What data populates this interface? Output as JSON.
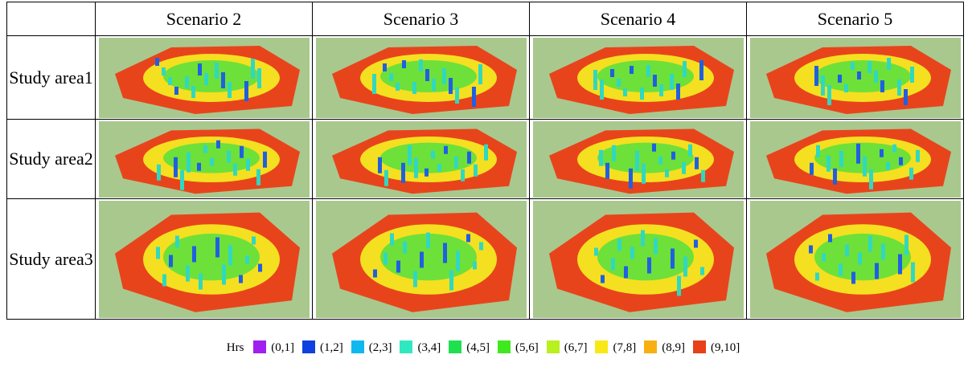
{
  "header": {
    "columns": [
      "Scenario 2",
      "Scenario 3",
      "Scenario 4",
      "Scenario 5"
    ]
  },
  "rows": [
    "Study area1",
    "Study area2",
    "Study area3"
  ],
  "legend": {
    "title": "Hrs",
    "items": [
      {
        "label": "(0,1]",
        "color": "#a020f0"
      },
      {
        "label": "(1,2]",
        "color": "#1040e0"
      },
      {
        "label": "(2,3]",
        "color": "#10b8f0"
      },
      {
        "label": "(3,4]",
        "color": "#30e8c0"
      },
      {
        "label": "(4,5]",
        "color": "#20e050"
      },
      {
        "label": "(5,6]",
        "color": "#40e820"
      },
      {
        "label": "(6,7]",
        "color": "#b8f020"
      },
      {
        "label": "(7,8]",
        "color": "#f8e818"
      },
      {
        "label": "(8,9]",
        "color": "#f8b010"
      },
      {
        "label": "(9,10]",
        "color": "#e84018"
      }
    ]
  }
}
